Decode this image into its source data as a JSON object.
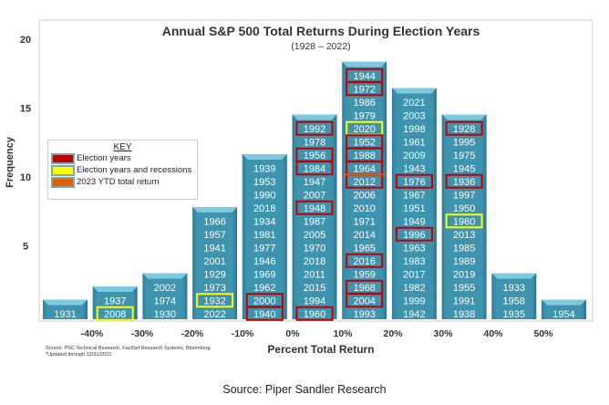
{
  "chart_data": {
    "type": "bar",
    "title": "Annual S&P 500 Total Returns During Election Years",
    "subtitle": "(1928 – 2022)",
    "xlabel": "Percent Total Return",
    "ylabel": "Frequency",
    "ylim": [
      0,
      20
    ],
    "yticks": [
      "5",
      "10",
      "15",
      "20"
    ],
    "xticks": [
      "-40%",
      "-30%",
      "-20%",
      "-10%",
      "0%",
      "10%",
      "20%",
      "30%",
      "40%",
      "50%"
    ],
    "grid": false,
    "bar_color": "#3e93ae",
    "bins": [
      {
        "range": "-50% to -40%",
        "years": [
          [
            "1931",
            ""
          ]
        ]
      },
      {
        "range": "-40% to -30%",
        "years": [
          [
            "1937",
            ""
          ],
          [
            "2008",
            "yellow"
          ]
        ]
      },
      {
        "range": "-30% to -20%",
        "years": [
          [
            "2002",
            ""
          ],
          [
            "1974",
            ""
          ],
          [
            "1930",
            ""
          ]
        ]
      },
      {
        "range": "-20% to -10%",
        "years": [
          [
            "1966",
            ""
          ],
          [
            "1957",
            ""
          ],
          [
            "1941",
            ""
          ],
          [
            "2001",
            ""
          ],
          [
            "1929",
            ""
          ],
          [
            "1973",
            ""
          ],
          [
            "1932",
            "yellow"
          ],
          [
            "2022",
            ""
          ]
        ]
      },
      {
        "range": "-10% to 0%",
        "years": [
          [
            "1939",
            ""
          ],
          [
            "1953",
            ""
          ],
          [
            "1990",
            ""
          ],
          [
            "2018",
            ""
          ],
          [
            "1934",
            ""
          ],
          [
            "1981",
            ""
          ],
          [
            "1977",
            ""
          ],
          [
            "1946",
            ""
          ],
          [
            "1969",
            ""
          ],
          [
            "1962",
            ""
          ],
          [
            "2000",
            "red"
          ],
          [
            "1940",
            "red"
          ]
        ]
      },
      {
        "range": "0% to 10%",
        "years": [
          [
            "1992",
            "red"
          ],
          [
            "1978",
            ""
          ],
          [
            "1956",
            "red"
          ],
          [
            "1984",
            "red"
          ],
          [
            "1947",
            ""
          ],
          [
            "2007",
            ""
          ],
          [
            "1948",
            "red"
          ],
          [
            "1987",
            ""
          ],
          [
            "2005",
            ""
          ],
          [
            "1970",
            ""
          ],
          [
            "2018",
            ""
          ],
          [
            "2011",
            ""
          ],
          [
            "2015",
            ""
          ],
          [
            "1994",
            ""
          ],
          [
            "1960",
            "red"
          ]
        ]
      },
      {
        "range": "10% to 20%",
        "years": [
          [
            "1944",
            "red"
          ],
          [
            "1972",
            "red"
          ],
          [
            "1986",
            ""
          ],
          [
            "1979",
            ""
          ],
          [
            "2020",
            "yellow"
          ],
          [
            "1952",
            "red"
          ],
          [
            "1988",
            "red"
          ],
          [
            "1964",
            "red"
          ],
          [
            "2012",
            "red"
          ],
          [
            "2006",
            ""
          ],
          [
            "2010",
            ""
          ],
          [
            "1971",
            ""
          ],
          [
            "2014",
            ""
          ],
          [
            "1965",
            ""
          ],
          [
            "2016",
            "red"
          ],
          [
            "1959",
            ""
          ],
          [
            "1968",
            "red"
          ],
          [
            "2004",
            "red"
          ],
          [
            "1993",
            ""
          ]
        ],
        "ytd_line_after": 8
      },
      {
        "range": "20% to 30%",
        "years": [
          [
            "2021",
            ""
          ],
          [
            "2003",
            ""
          ],
          [
            "1998",
            ""
          ],
          [
            "1961",
            ""
          ],
          [
            "2009",
            ""
          ],
          [
            "1943",
            ""
          ],
          [
            "1976",
            "red"
          ],
          [
            "1967",
            ""
          ],
          [
            "1951",
            ""
          ],
          [
            "1949",
            ""
          ],
          [
            "1996",
            "red"
          ],
          [
            "1963",
            ""
          ],
          [
            "1983",
            ""
          ],
          [
            "2017",
            ""
          ],
          [
            "1982",
            ""
          ],
          [
            "1999",
            ""
          ],
          [
            "1942",
            ""
          ]
        ]
      },
      {
        "range": "30% to 40%",
        "years": [
          [
            "1928",
            "red"
          ],
          [
            "1995",
            ""
          ],
          [
            "1975",
            ""
          ],
          [
            "1945",
            ""
          ],
          [
            "1936",
            "red"
          ],
          [
            "1997",
            ""
          ],
          [
            "1950",
            ""
          ],
          [
            "1980",
            "yellow"
          ],
          [
            "2013",
            ""
          ],
          [
            "1985",
            ""
          ],
          [
            "1989",
            ""
          ],
          [
            "2019",
            ""
          ],
          [
            "1955",
            ""
          ],
          [
            "1991",
            ""
          ],
          [
            "1938",
            ""
          ]
        ]
      },
      {
        "range": "40% to 50%",
        "years": [
          [
            "1933",
            ""
          ],
          [
            "1958",
            ""
          ],
          [
            "1935",
            ""
          ]
        ]
      },
      {
        "range": "50% to 60%",
        "years": [
          [
            "1954",
            ""
          ]
        ]
      }
    ],
    "legend": {
      "title": "KEY",
      "placement": "left",
      "items": [
        {
          "label": "Election years",
          "color": "#c00000"
        },
        {
          "label": "Election years and recessions",
          "color": "#ffff00"
        },
        {
          "label": "2023 YTD total return",
          "color": "#e65c00"
        }
      ]
    },
    "notes": [
      "Source: PSC Technical Research, FactSet Research Systems, Bloomberg",
      "*Updated through 12/31/2022"
    ]
  },
  "footer": "Source: Piper Sandler Research"
}
